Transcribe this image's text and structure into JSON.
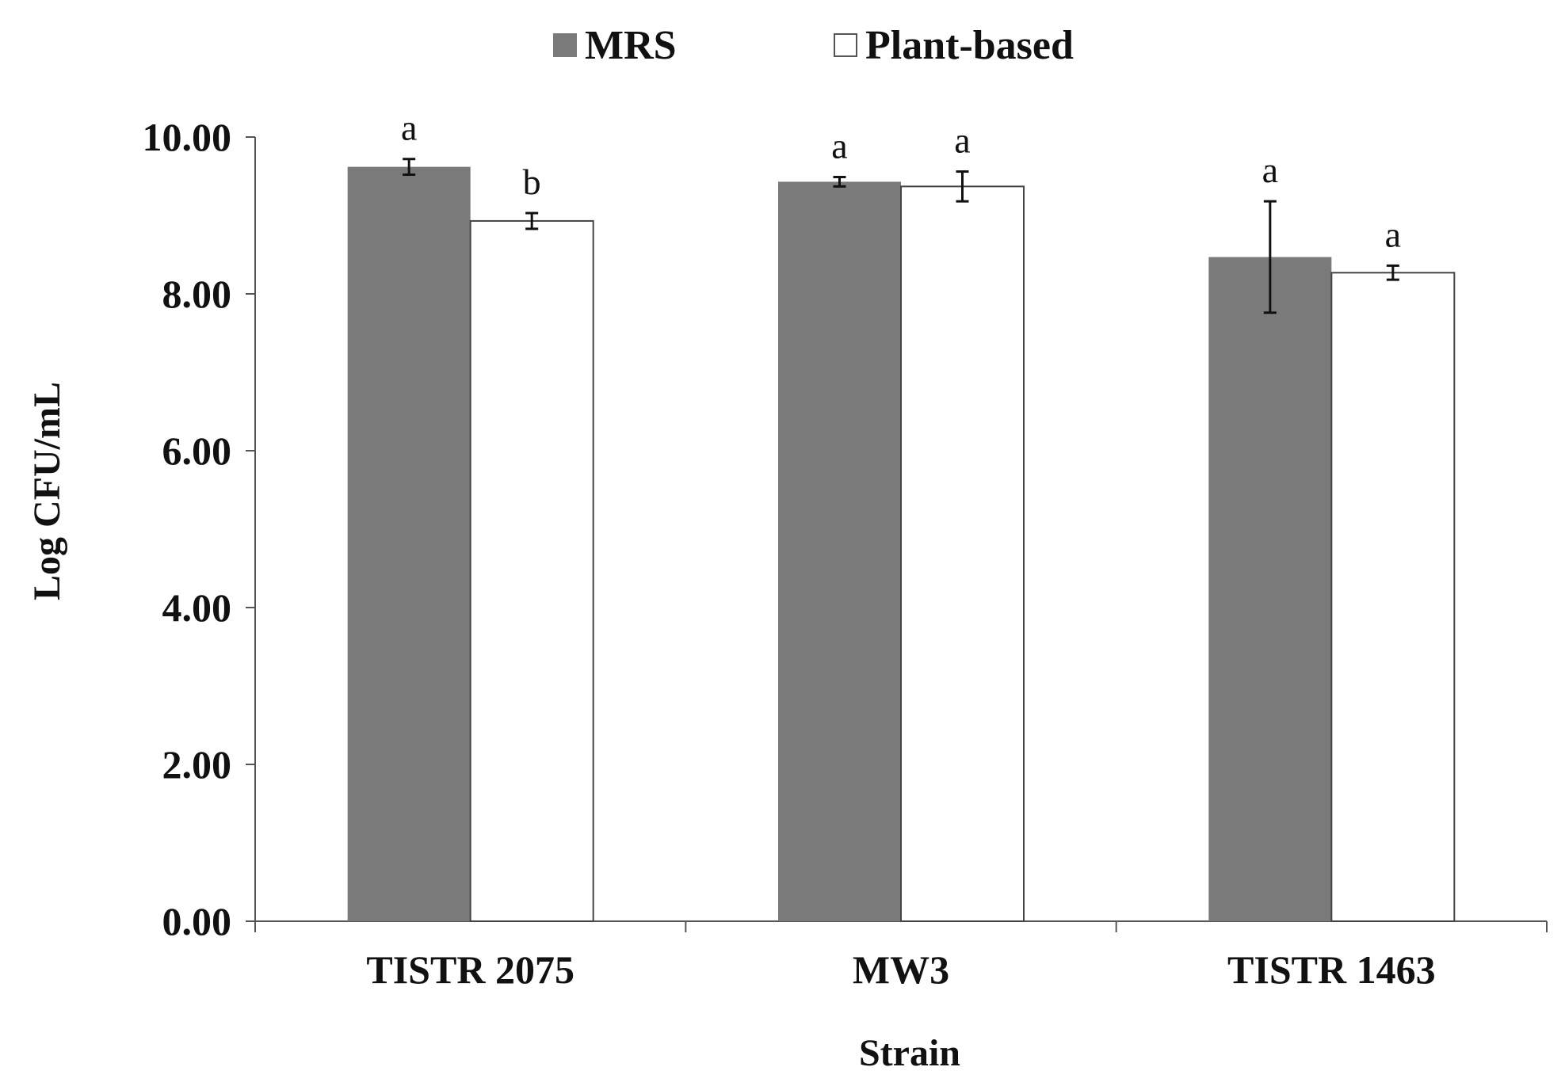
{
  "chart_data": {
    "type": "bar",
    "categories": [
      "TISTR 2075",
      "MW3",
      "TISTR 1463"
    ],
    "series": [
      {
        "name": "MRS",
        "color": "#7a7a7a",
        "values": [
          9.62,
          9.43,
          8.47
        ],
        "errors": [
          0.1,
          0.06,
          0.71
        ],
        "sig_labels": [
          "a",
          "a",
          "a"
        ]
      },
      {
        "name": "Plant-based",
        "color": "#ffffff",
        "values": [
          8.93,
          9.37,
          8.27
        ],
        "errors": [
          0.1,
          0.19,
          0.09
        ],
        "sig_labels": [
          "b",
          "a",
          "a"
        ]
      }
    ],
    "ylim": [
      0,
      10
    ],
    "yticks": [
      0,
      2,
      4,
      6,
      8,
      10
    ],
    "ytick_labels": [
      "0.00",
      "2.00",
      "4.00",
      "6.00",
      "8.00",
      "10.00"
    ],
    "xlabel": "Strain",
    "ylabel": "Log CFU/mL",
    "legend_position": "top-center",
    "grid": false
  }
}
